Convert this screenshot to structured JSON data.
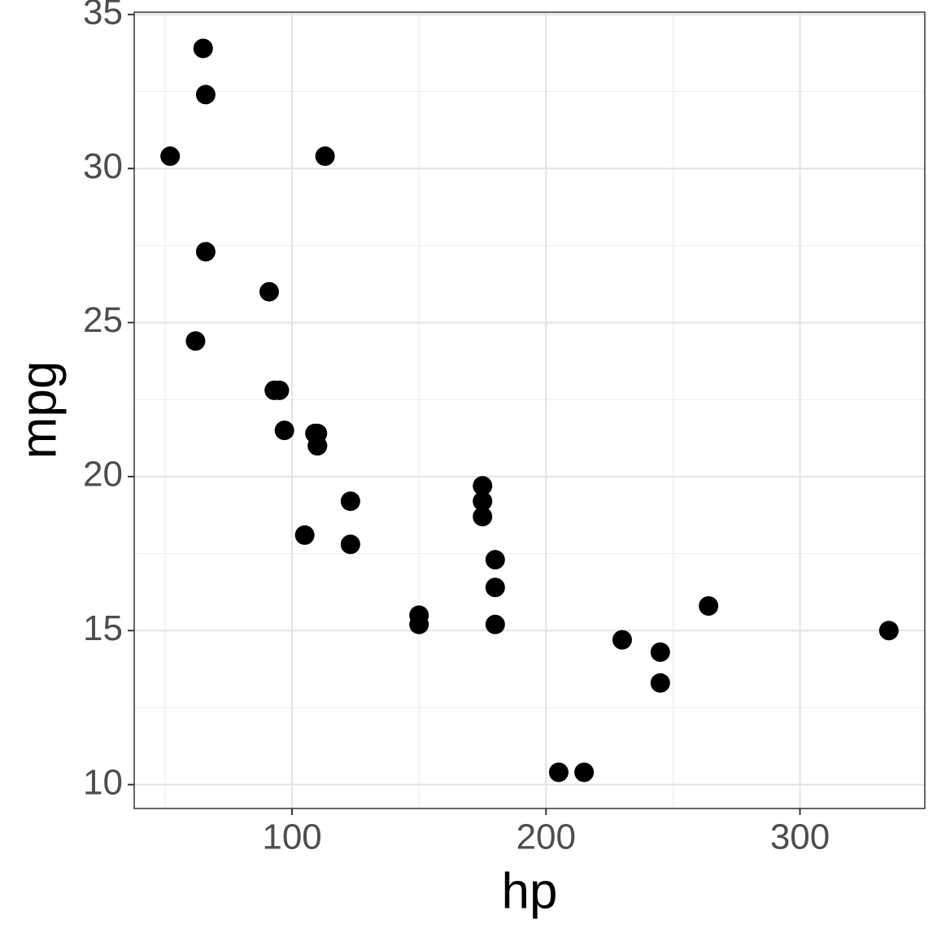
{
  "chart_data": {
    "type": "scatter",
    "x_label": "hp",
    "y_label": "mpg",
    "x": [
      110,
      110,
      93,
      110,
      175,
      105,
      245,
      62,
      95,
      123,
      123,
      180,
      180,
      180,
      205,
      215,
      230,
      66,
      52,
      65,
      97,
      150,
      150,
      245,
      175,
      66,
      91,
      113,
      264,
      175,
      335,
      109
    ],
    "y": [
      21.0,
      21.0,
      22.8,
      21.4,
      18.7,
      18.1,
      14.3,
      24.4,
      22.8,
      19.2,
      17.8,
      16.4,
      17.3,
      15.2,
      10.4,
      10.4,
      14.7,
      32.4,
      30.4,
      33.9,
      21.5,
      15.5,
      15.2,
      13.3,
      19.2,
      27.3,
      26.0,
      30.4,
      15.8,
      19.7,
      15.0,
      21.4
    ],
    "color": "#000000",
    "xlim": [
      37.85,
      349.15
    ],
    "ylim": [
      9.225,
      35.075
    ],
    "xticks": [
      100,
      200,
      300
    ],
    "yticks": [
      10,
      15,
      20,
      25,
      30,
      35
    ],
    "x_minor_grid": [
      50,
      150,
      250
    ],
    "y_minor_grid": [
      12.5,
      17.5,
      22.5,
      27.5,
      32.5
    ],
    "grid": true
  }
}
